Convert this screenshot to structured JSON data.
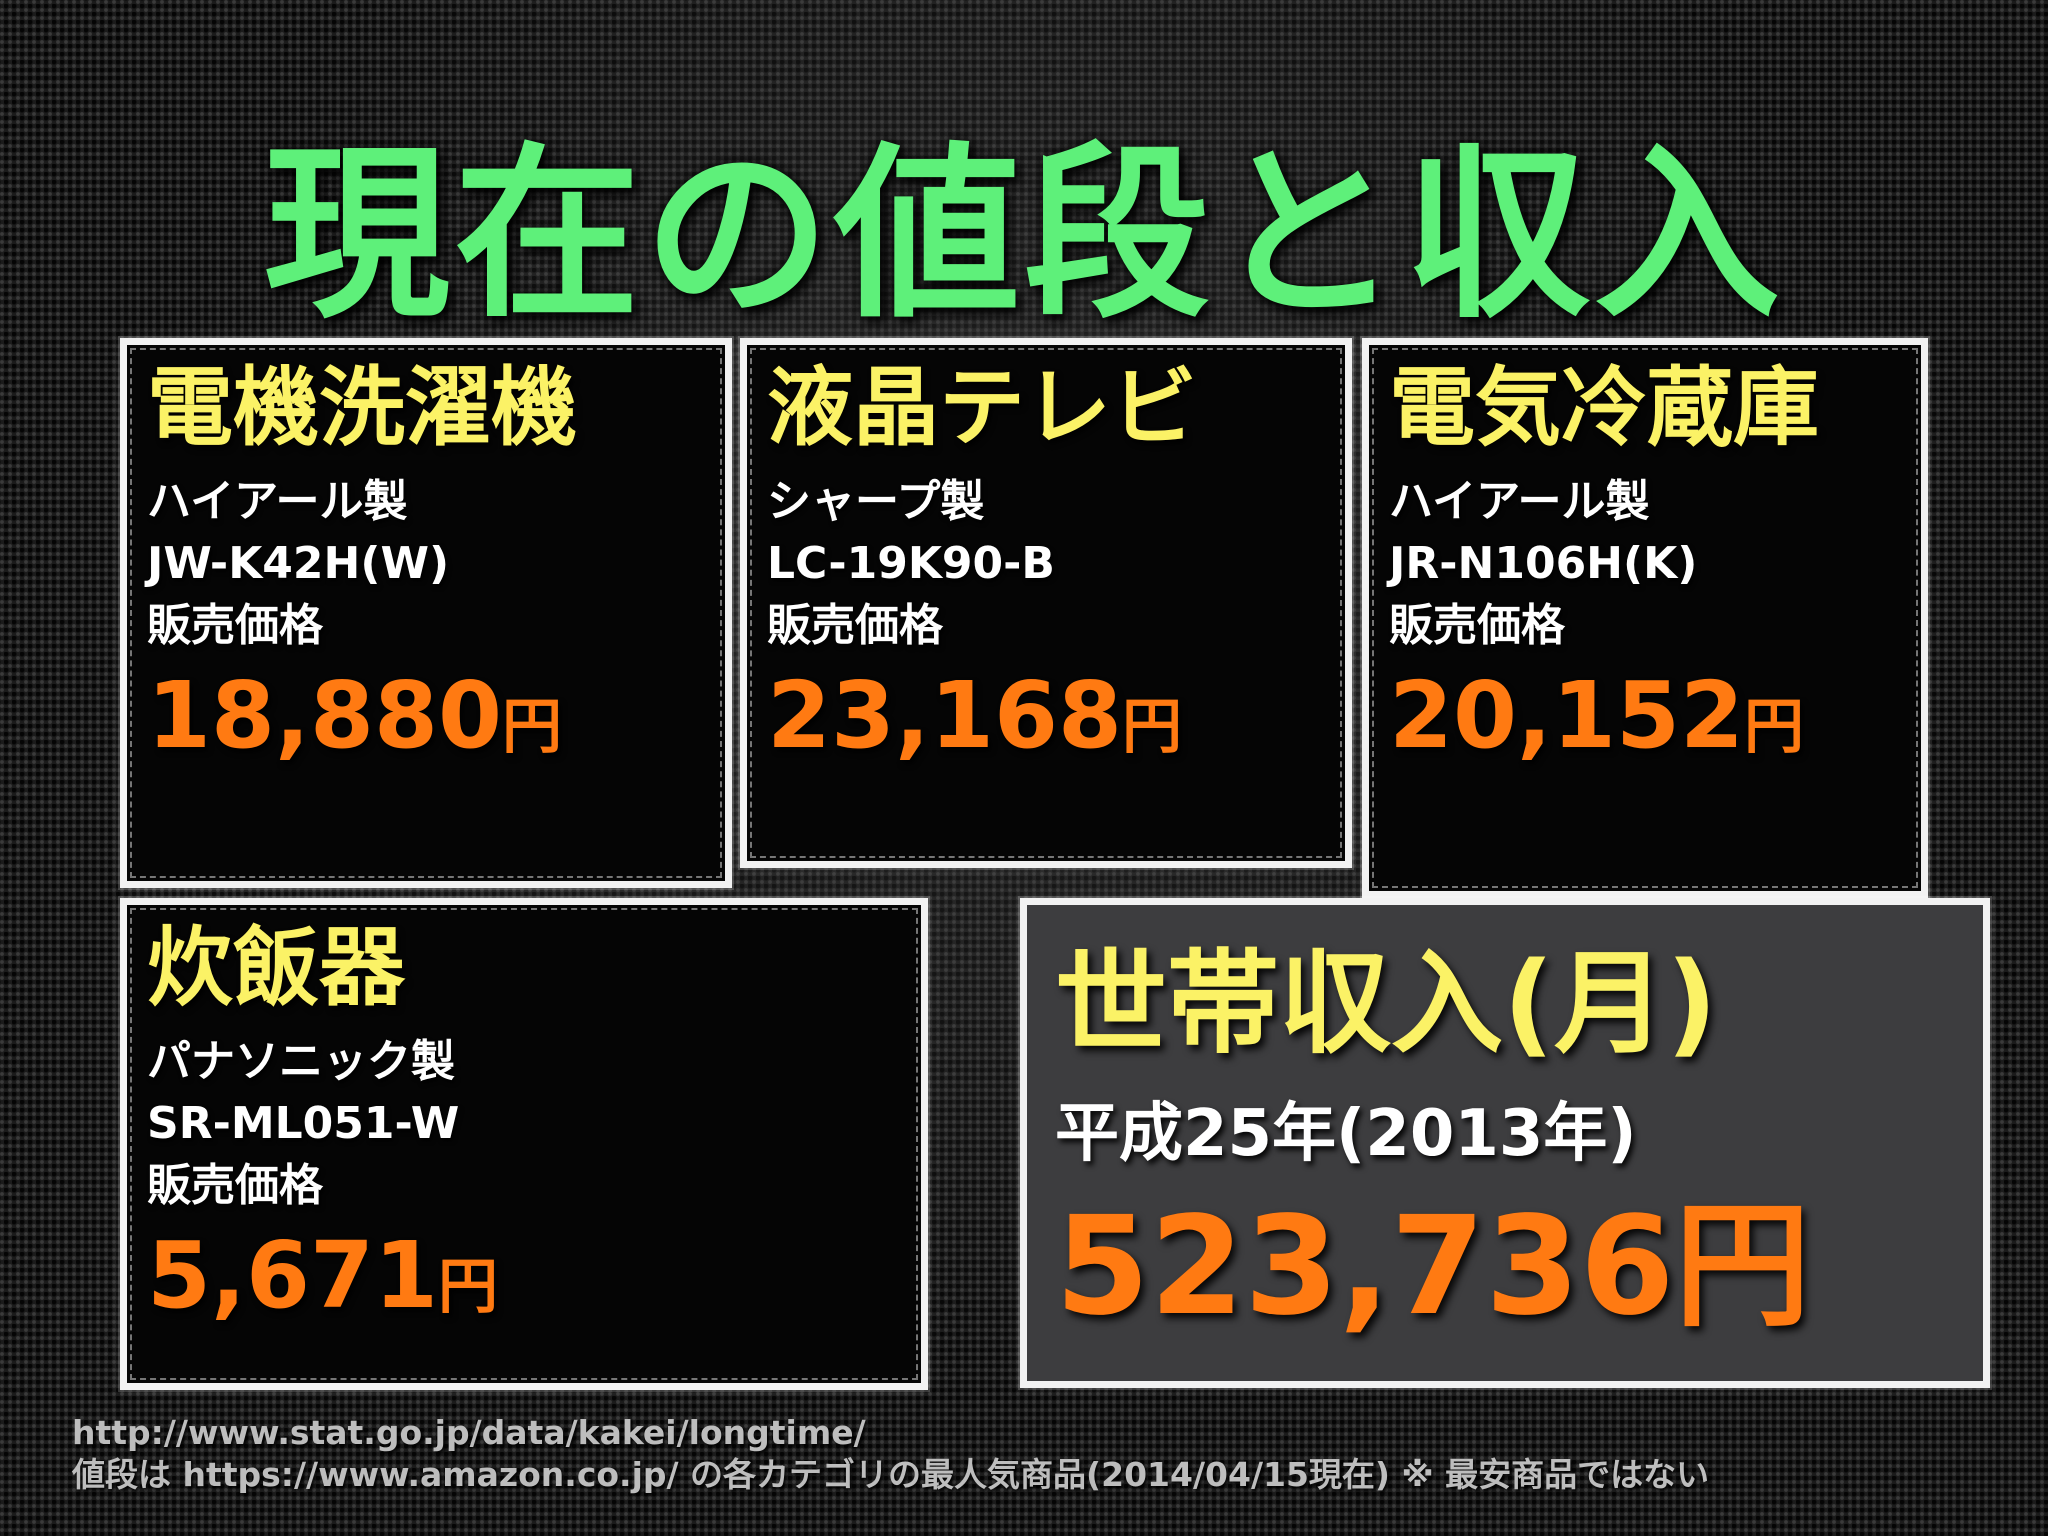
{
  "title": "現在の値段と収入",
  "products": [
    {
      "category": "電機洗濯機",
      "maker": "ハイアール製",
      "model": "JW-K42H(W)",
      "price_label": "販売価格",
      "price": "18,880",
      "unit": "円"
    },
    {
      "category": "液晶テレビ",
      "maker": "シャープ製",
      "model": "LC-19K90-B",
      "price_label": "販売価格",
      "price": "23,168",
      "unit": "円"
    },
    {
      "category": "電気冷蔵庫",
      "maker": "ハイアール製",
      "model": "JR-N106H(K)",
      "price_label": "販売価格",
      "price": "20,152",
      "unit": "円"
    },
    {
      "category": "炊飯器",
      "maker": "パナソニック製",
      "model": "SR-ML051-W",
      "price_label": "販売価格",
      "price": "5,671",
      "unit": "円"
    }
  ],
  "income": {
    "title": "世帯収入(月)",
    "period": "平成25年(2013年)",
    "value": "523,736",
    "unit": "円"
  },
  "footer": {
    "line1": "http://www.stat.go.jp/data/kakei/longtime/",
    "line2": "値段は https://www.amazon.co.jp/ の各カテゴリの最人気商品(2014/04/15現在) ※ 最安商品ではない"
  },
  "colors": {
    "title": "#5ef07a",
    "category": "#fbf266",
    "price": "#ff7a12",
    "box_border": "#f2f2f2",
    "income_box_bg": "#3d3d3f"
  }
}
